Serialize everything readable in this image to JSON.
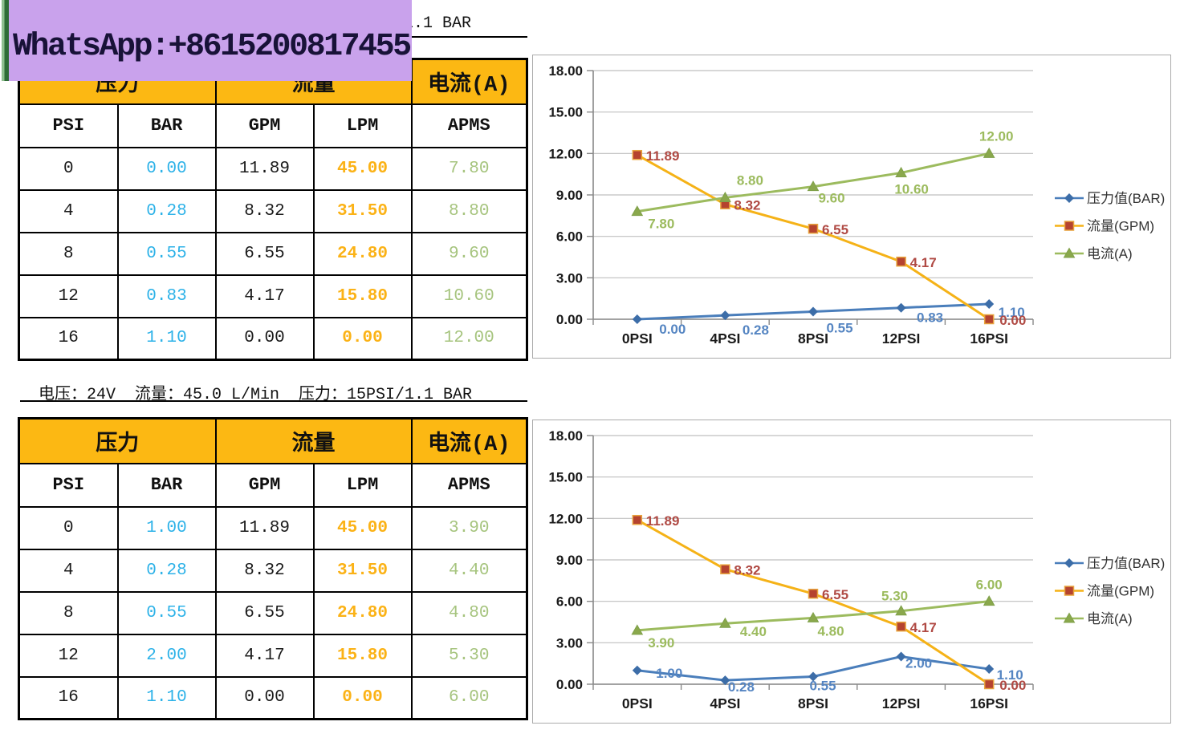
{
  "watermark": {
    "text": "WhatsApp:+8615200817455",
    "bg_color": "#C9A2EC",
    "strip_color": "#2E6B35",
    "text_color": "#181238"
  },
  "top_caption": {
    "visible_fragment": "1.1 BAR"
  },
  "mid_caption": {
    "text": "电压：24V  流量：45.0 L/Min  压力：15PSI/1.1 BAR"
  },
  "table_style": {
    "header_bg": "#FCB813",
    "bar_color": "#2DB2E8",
    "lpm_color": "#FBB216",
    "apms_color": "#A6C47E"
  },
  "tables": [
    {
      "group_headers": [
        {
          "label": "压力",
          "span": 2
        },
        {
          "label": "流量",
          "span": 2
        },
        {
          "label": "电流(A)",
          "span": 1
        }
      ],
      "columns": [
        "PSI",
        "BAR",
        "GPM",
        "LPM",
        "APMS"
      ],
      "rows": [
        [
          "0",
          "0.00",
          "11.89",
          "45.00",
          "7.80"
        ],
        [
          "4",
          "0.28",
          "8.32",
          "31.50",
          "8.80"
        ],
        [
          "8",
          "0.55",
          "6.55",
          "24.80",
          "9.60"
        ],
        [
          "12",
          "0.83",
          "4.17",
          "15.80",
          "10.60"
        ],
        [
          "16",
          "1.10",
          "0.00",
          "0.00",
          "12.00"
        ]
      ]
    },
    {
      "group_headers": [
        {
          "label": "压力",
          "span": 2
        },
        {
          "label": "流量",
          "span": 2
        },
        {
          "label": "电流(A)",
          "span": 1
        }
      ],
      "columns": [
        "PSI",
        "BAR",
        "GPM",
        "LPM",
        "APMS"
      ],
      "rows": [
        [
          "0",
          "1.00",
          "11.89",
          "45.00",
          "3.90"
        ],
        [
          "4",
          "0.28",
          "8.32",
          "31.50",
          "4.40"
        ],
        [
          "8",
          "0.55",
          "6.55",
          "24.80",
          "4.80"
        ],
        [
          "12",
          "2.00",
          "4.17",
          "15.80",
          "5.30"
        ],
        [
          "16",
          "1.10",
          "0.00",
          "0.00",
          "6.00"
        ]
      ]
    }
  ],
  "chart_data": [
    {
      "type": "line",
      "name": "pump-curve-chart-1",
      "title": "",
      "categories": [
        "0PSI",
        "4PSI",
        "8PSI",
        "12PSI",
        "16PSI"
      ],
      "ylim": [
        0,
        18
      ],
      "ytick_step": 3,
      "grid": true,
      "legend_position": "right",
      "series": [
        {
          "name": "压力值(BAR)",
          "values": [
            0.0,
            0.28,
            0.55,
            0.83,
            1.1
          ],
          "labels": [
            "0.00",
            "0.28",
            "0.55",
            "0.83",
            "1.10"
          ],
          "color": "#4A7EBB",
          "marker": "diamond",
          "marker_color": "#3C6DA8",
          "label_color": "#5585C2",
          "label_anchor": "middle",
          "label_offsets": [
            [
              44,
              18
            ],
            [
              38,
              24
            ],
            [
              33,
              26
            ],
            [
              36,
              18
            ],
            [
              28,
              16
            ]
          ]
        },
        {
          "name": "流量(GPM)",
          "values": [
            11.89,
            8.32,
            6.55,
            4.17,
            0.0
          ],
          "labels": [
            "11.89",
            "8.32",
            "6.55",
            "4.17",
            "0.00"
          ],
          "color": "#F5B217",
          "marker": "square",
          "marker_color": "#B5432F",
          "label_color": "#B04A44",
          "label_anchor": "start",
          "label_offsets": [
            [
              11,
              7
            ],
            [
              11,
              7
            ],
            [
              11,
              7
            ],
            [
              11,
              7
            ],
            [
              13,
              7
            ]
          ]
        },
        {
          "name": "电流(A)",
          "values": [
            7.8,
            8.8,
            9.6,
            10.6,
            12.0
          ],
          "labels": [
            "7.80",
            "8.80",
            "9.60",
            "10.60",
            "12.00"
          ],
          "color": "#9CBB5E",
          "marker": "triangle",
          "marker_color": "#8AA84C",
          "label_color": "#9CBB5E",
          "label_anchor": "middle",
          "label_offsets": [
            [
              30,
              21
            ],
            [
              31,
              -16
            ],
            [
              23,
              20
            ],
            [
              13,
              26
            ],
            [
              9,
              -16
            ]
          ]
        }
      ]
    },
    {
      "type": "line",
      "name": "pump-curve-chart-2",
      "title": "",
      "categories": [
        "0PSI",
        "4PSI",
        "8PSI",
        "12PSI",
        "16PSI"
      ],
      "ylim": [
        0,
        18
      ],
      "ytick_step": 3,
      "grid": true,
      "legend_position": "right",
      "series": [
        {
          "name": "压力值(BAR)",
          "values": [
            1.0,
            0.28,
            0.55,
            2.0,
            1.1
          ],
          "labels": [
            "1.00",
            "0.28",
            "0.55",
            "2.00",
            "1.10"
          ],
          "color": "#4A7EBB",
          "marker": "diamond",
          "marker_color": "#3C6DA8",
          "label_color": "#5585C2",
          "label_anchor": "middle",
          "label_offsets": [
            [
              40,
              9
            ],
            [
              20,
              14
            ],
            [
              12,
              17
            ],
            [
              22,
              14
            ],
            [
              26,
              13
            ]
          ]
        },
        {
          "name": "流量(GPM)",
          "values": [
            11.89,
            8.32,
            6.55,
            4.17,
            0.0
          ],
          "labels": [
            "11.89",
            "8.32",
            "6.55",
            "4.17",
            "0.00"
          ],
          "color": "#F5B217",
          "marker": "square",
          "marker_color": "#B5432F",
          "label_color": "#B04A44",
          "label_anchor": "start",
          "label_offsets": [
            [
              11,
              7
            ],
            [
              11,
              7
            ],
            [
              11,
              7
            ],
            [
              11,
              7
            ],
            [
              13,
              7
            ]
          ]
        },
        {
          "name": "电流(A)",
          "values": [
            3.9,
            4.4,
            4.8,
            5.3,
            6.0
          ],
          "labels": [
            "3.90",
            "4.40",
            "4.80",
            "5.30",
            "6.00"
          ],
          "color": "#9CBB5E",
          "marker": "triangle",
          "marker_color": "#8AA84C",
          "label_color": "#9CBB5E",
          "label_anchor": "middle",
          "label_offsets": [
            [
              30,
              21
            ],
            [
              35,
              16
            ],
            [
              22,
              22
            ],
            [
              -8,
              -13
            ],
            [
              0,
              -15
            ]
          ]
        }
      ]
    }
  ]
}
